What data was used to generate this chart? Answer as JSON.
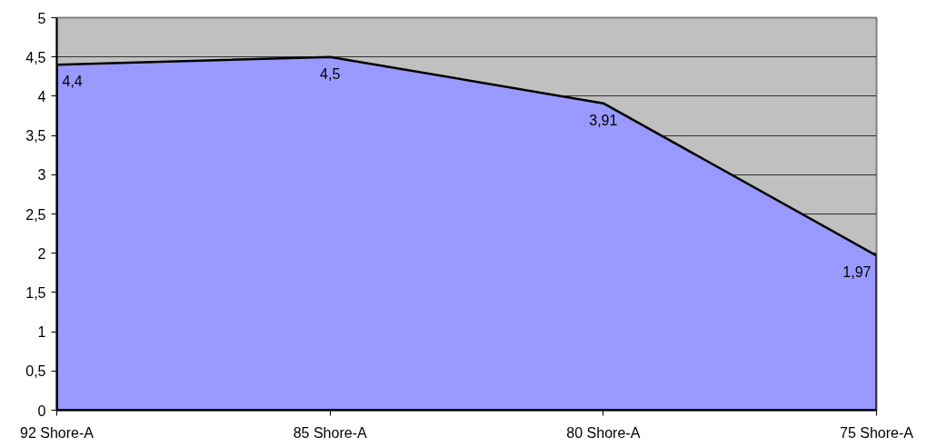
{
  "chart_data": {
    "type": "area",
    "categories": [
      "92 Shore-A",
      "85 Shore-A",
      "80 Shore-A",
      "75 Shore-A"
    ],
    "values": [
      4.4,
      4.5,
      3.91,
      1.97
    ],
    "color": "#9999ff",
    "value_labels": [
      "4,4",
      "4,5",
      "3,91",
      "1,97"
    ],
    "ylim": [
      0,
      5
    ],
    "yticks": [
      0,
      {
        "value": 0.5,
        "label": "0,5"
      },
      1,
      {
        "value": 1.5,
        "label": "1,5"
      },
      2,
      {
        "value": 2.5,
        "label": "2,5"
      },
      3,
      {
        "value": 3.5,
        "label": "3,5"
      },
      4,
      {
        "value": 4.5,
        "label": "4,5"
      },
      5
    ],
    "grid": "y"
  }
}
